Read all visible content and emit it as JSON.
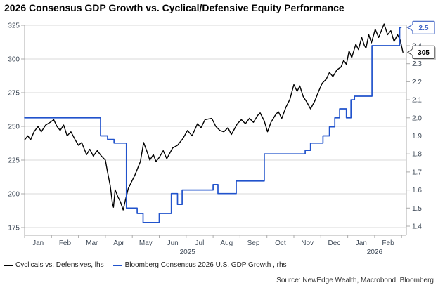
{
  "header": {
    "title": "2026 Consensus GDP Growth vs. Cyclical/Defensive Equity Performance"
  },
  "legend": {
    "items": [
      {
        "id": "cyclicals",
        "label": "Cyclicals vs. Defensives, lhs",
        "color_key": "cyclicals_line"
      },
      {
        "id": "gdp",
        "label": "Bloomberg Consensus 2026 U.S. GDP Growth , rhs",
        "color_key": "gdp_line"
      }
    ]
  },
  "footer": {
    "source": "Source: NewEdge Wealth, Macrobond, Bloomberg"
  },
  "colors": {
    "cyclicals_line": "#000000",
    "gdp_line": "#2153cc",
    "grid": "#d9d9d9",
    "axis_line": "#ababab",
    "tick_label": "#3d4856",
    "title_text": "#000000",
    "legend_text": "#1a1a1a",
    "source_text": "#333333",
    "callout_gdp": "#3e62c4",
    "callout_dark": "#4d4d4d",
    "callout_fill": "#ffffff",
    "callout_shadow": "#c8c8c8"
  },
  "chart_data": {
    "type": "line",
    "title": "2026 Consensus GDP Growth vs. Cyclical/Defensive Equity Performance",
    "grid": "horizontal",
    "legend_position": "bottom-left",
    "x_axis": {
      "unit": "months since Jan 1 2025",
      "range_months": [
        0,
        14.19
      ],
      "month_labels": [
        "Jan",
        "Feb",
        "Mar",
        "Apr",
        "May",
        "Jun",
        "Jul",
        "Aug",
        "Sep",
        "Oct",
        "Nov",
        "Dec",
        "Jan",
        "Feb"
      ],
      "year_labels": [
        {
          "label": "2025",
          "month_pos": 6.05
        },
        {
          "label": "2026",
          "month_pos": 13.0
        }
      ]
    },
    "left_axis": {
      "series": "Cyclicals vs. Defensives",
      "tick_labels": [
        "175",
        "200",
        "225",
        "250",
        "275",
        "300",
        "325"
      ],
      "range": [
        169,
        327
      ]
    },
    "right_axis": {
      "series": "Bloomberg Consensus 2026 U.S. GDP Growth",
      "tick_labels": [
        "1.4",
        "1.5",
        "1.6",
        "1.7",
        "1.8",
        "1.9",
        "2.0",
        "2.1",
        "2.2",
        "2.3",
        "2.4",
        "2.5"
      ],
      "range": [
        1.35,
        2.53
      ]
    },
    "series": [
      {
        "id": "cyclicals",
        "name": "Cyclicals vs. Defensives, lhs",
        "axis": "left",
        "color_key": "cyclicals_line",
        "stroke_width": 1.4,
        "points": [
          [
            0,
            240
          ],
          [
            0.12,
            243
          ],
          [
            0.22,
            240
          ],
          [
            0.35,
            246
          ],
          [
            0.5,
            250
          ],
          [
            0.62,
            246
          ],
          [
            0.78,
            251
          ],
          [
            0.95,
            253
          ],
          [
            1.08,
            255
          ],
          [
            1.2,
            250
          ],
          [
            1.32,
            247
          ],
          [
            1.45,
            251
          ],
          [
            1.58,
            243
          ],
          [
            1.72,
            246
          ],
          [
            1.88,
            240
          ],
          [
            2.0,
            236
          ],
          [
            2.12,
            238
          ],
          [
            2.3,
            229
          ],
          [
            2.42,
            233
          ],
          [
            2.55,
            228
          ],
          [
            2.7,
            232
          ],
          [
            2.85,
            228
          ],
          [
            3.0,
            225
          ],
          [
            3.08,
            216
          ],
          [
            3.18,
            206
          ],
          [
            3.26,
            193
          ],
          [
            3.3,
            190
          ],
          [
            3.36,
            203
          ],
          [
            3.46,
            198
          ],
          [
            3.56,
            194
          ],
          [
            3.66,
            188
          ],
          [
            3.74,
            195
          ],
          [
            3.85,
            204
          ],
          [
            3.95,
            208
          ],
          [
            4.1,
            214
          ],
          [
            4.3,
            224
          ],
          [
            4.42,
            238
          ],
          [
            4.55,
            231
          ],
          [
            4.65,
            225
          ],
          [
            4.78,
            229
          ],
          [
            4.88,
            224
          ],
          [
            5.0,
            227
          ],
          [
            5.15,
            232
          ],
          [
            5.28,
            226
          ],
          [
            5.5,
            234
          ],
          [
            5.68,
            236
          ],
          [
            5.88,
            241
          ],
          [
            6.05,
            247
          ],
          [
            6.22,
            243
          ],
          [
            6.42,
            252
          ],
          [
            6.55,
            249
          ],
          [
            6.7,
            255
          ],
          [
            6.95,
            256
          ],
          [
            7.1,
            250
          ],
          [
            7.25,
            247
          ],
          [
            7.4,
            246
          ],
          [
            7.55,
            249
          ],
          [
            7.68,
            244
          ],
          [
            7.9,
            252
          ],
          [
            8.05,
            255
          ],
          [
            8.2,
            252
          ],
          [
            8.35,
            256
          ],
          [
            8.5,
            253
          ],
          [
            8.65,
            258
          ],
          [
            8.75,
            260
          ],
          [
            8.9,
            254
          ],
          [
            9.02,
            246
          ],
          [
            9.15,
            253
          ],
          [
            9.3,
            258
          ],
          [
            9.42,
            261
          ],
          [
            9.55,
            256
          ],
          [
            9.7,
            264
          ],
          [
            9.85,
            270
          ],
          [
            10.0,
            281
          ],
          [
            10.12,
            276
          ],
          [
            10.22,
            280
          ],
          [
            10.35,
            272
          ],
          [
            10.48,
            268
          ],
          [
            10.62,
            263
          ],
          [
            10.78,
            269
          ],
          [
            10.92,
            276
          ],
          [
            11.05,
            282
          ],
          [
            11.2,
            285
          ],
          [
            11.32,
            290
          ],
          [
            11.45,
            287
          ],
          [
            11.6,
            292
          ],
          [
            11.75,
            294
          ],
          [
            11.85,
            299
          ],
          [
            11.95,
            296
          ],
          [
            12.05,
            306
          ],
          [
            12.15,
            301
          ],
          [
            12.3,
            311
          ],
          [
            12.4,
            307
          ],
          [
            12.52,
            316
          ],
          [
            12.62,
            310
          ],
          [
            12.68,
            308
          ],
          [
            12.78,
            318
          ],
          [
            12.88,
            312
          ],
          [
            13.02,
            322
          ],
          [
            13.15,
            316
          ],
          [
            13.35,
            326
          ],
          [
            13.48,
            318
          ],
          [
            13.6,
            321
          ],
          [
            13.72,
            313
          ],
          [
            13.85,
            318
          ],
          [
            13.95,
            314
          ],
          [
            14.05,
            305
          ]
        ],
        "last_value": 305
      },
      {
        "id": "gdp",
        "name": "Bloomberg Consensus 2026 U.S. GDP Growth , rhs",
        "axis": "right",
        "color_key": "gdp_line",
        "stroke_width": 1.7,
        "points": [
          [
            0,
            2.0
          ],
          [
            2.82,
            2.0
          ],
          [
            2.82,
            1.9
          ],
          [
            3.08,
            1.9
          ],
          [
            3.08,
            1.88
          ],
          [
            3.32,
            1.88
          ],
          [
            3.32,
            1.86
          ],
          [
            3.78,
            1.86
          ],
          [
            3.78,
            1.5
          ],
          [
            4.18,
            1.5
          ],
          [
            4.18,
            1.47
          ],
          [
            4.4,
            1.47
          ],
          [
            4.4,
            1.42
          ],
          [
            5.0,
            1.42
          ],
          [
            5.0,
            1.47
          ],
          [
            5.45,
            1.47
          ],
          [
            5.45,
            1.58
          ],
          [
            5.68,
            1.58
          ],
          [
            5.68,
            1.52
          ],
          [
            5.85,
            1.52
          ],
          [
            5.85,
            1.6
          ],
          [
            7.0,
            1.6
          ],
          [
            7.0,
            1.63
          ],
          [
            7.18,
            1.63
          ],
          [
            7.18,
            1.58
          ],
          [
            7.86,
            1.58
          ],
          [
            7.86,
            1.65
          ],
          [
            8.9,
            1.65
          ],
          [
            8.9,
            1.8
          ],
          [
            10.42,
            1.8
          ],
          [
            10.42,
            1.82
          ],
          [
            10.62,
            1.82
          ],
          [
            10.62,
            1.86
          ],
          [
            11.08,
            1.86
          ],
          [
            11.08,
            1.9
          ],
          [
            11.32,
            1.9
          ],
          [
            11.32,
            1.95
          ],
          [
            11.52,
            1.95
          ],
          [
            11.52,
            2.0
          ],
          [
            11.7,
            2.0
          ],
          [
            11.7,
            2.05
          ],
          [
            11.95,
            2.05
          ],
          [
            11.95,
            2.0
          ],
          [
            12.12,
            2.0
          ],
          [
            12.12,
            2.1
          ],
          [
            12.25,
            2.1
          ],
          [
            12.25,
            2.12
          ],
          [
            12.9,
            2.12
          ],
          [
            12.9,
            2.4
          ],
          [
            13.93,
            2.4
          ],
          [
            13.93,
            2.5
          ],
          [
            13.98,
            2.5
          ]
        ],
        "last_value": 2.5
      }
    ],
    "callouts": [
      {
        "text": "2.5",
        "axis": "right",
        "value": 2.5,
        "color_key": "callout_gdp",
        "text_color_key": "callout_gdp",
        "shadow": false
      },
      {
        "text": "305",
        "axis": "left",
        "value": 305,
        "color_key": "callout_dark",
        "text_color_key": "title_text",
        "shadow": true
      }
    ]
  }
}
